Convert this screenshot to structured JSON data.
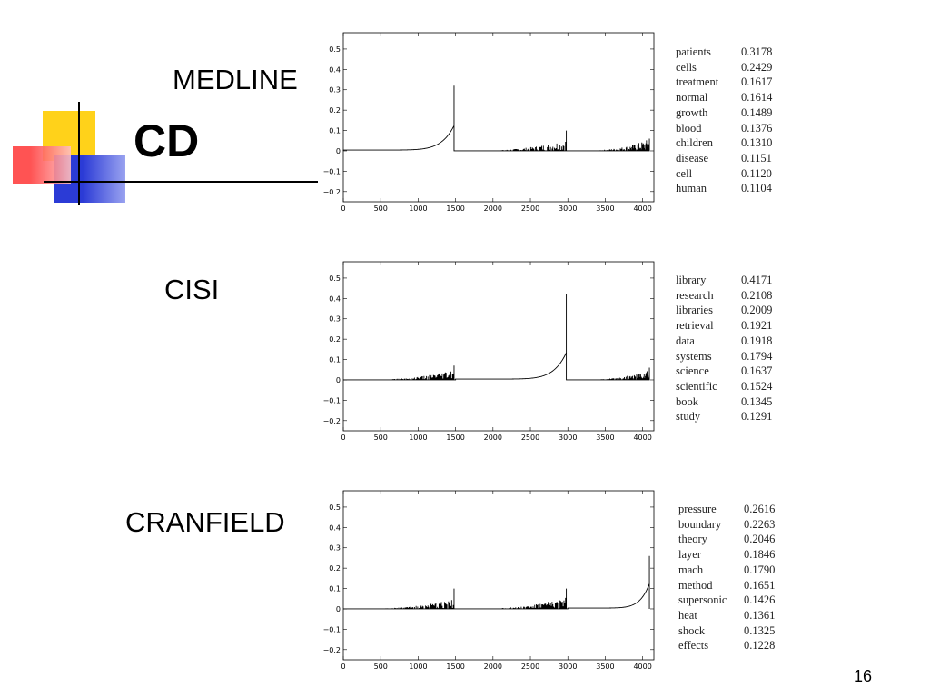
{
  "slide": {
    "title": "CD",
    "page_number": "16"
  },
  "colors": {
    "square_yellow": "#ffd21a",
    "square_blue": "#2b3bd6",
    "square_red": "#ff4040",
    "line": "#000000"
  },
  "chart_data": [
    {
      "type": "area",
      "name": "MEDLINE",
      "label": "MEDLINE",
      "xlim": [
        0,
        4150
      ],
      "ylim": [
        -0.25,
        0.58
      ],
      "x_ticks": [
        0,
        500,
        1000,
        1500,
        2000,
        2500,
        3000,
        3500,
        4000
      ],
      "y_ticks": [
        -0.2,
        -0.1,
        0,
        0.1,
        0.2,
        0.3,
        0.4,
        0.5
      ],
      "x_tick_labels": [
        "0",
        "500",
        "1000",
        "1500",
        "2000",
        "2500",
        "3000",
        "3500",
        "4000"
      ],
      "y_tick_labels": [
        "−0.2",
        "−0.1",
        "0",
        "0.1",
        "0.2",
        "0.3",
        "0.4",
        "0.5"
      ],
      "segments": [
        {
          "x_start": 0,
          "x_end": 1480,
          "shape": "smooth_rise",
          "base": 0.0,
          "peak": 0.12,
          "spike": 0.32
        },
        {
          "x_start": 1500,
          "x_end": 2980,
          "shape": "noise",
          "base": 0.0,
          "peak": 0.06,
          "spike": 0.1
        },
        {
          "x_start": 3000,
          "x_end": 4090,
          "shape": "noise",
          "base": 0.0,
          "peak": 0.06,
          "spike": 0.06
        }
      ],
      "terms": [
        {
          "word": "patients",
          "value": "0.3178"
        },
        {
          "word": "cells",
          "value": "0.2429"
        },
        {
          "word": "treatment",
          "value": "0.1617"
        },
        {
          "word": "normal",
          "value": "0.1614"
        },
        {
          "word": "growth",
          "value": "0.1489"
        },
        {
          "word": "blood",
          "value": "0.1376"
        },
        {
          "word": "children",
          "value": "0.1310"
        },
        {
          "word": "disease",
          "value": "0.1151"
        },
        {
          "word": "cell",
          "value": "0.1120"
        },
        {
          "word": "human",
          "value": "0.1104"
        }
      ]
    },
    {
      "type": "area",
      "name": "CISI",
      "label": "CISI",
      "xlim": [
        0,
        4150
      ],
      "ylim": [
        -0.25,
        0.58
      ],
      "x_ticks": [
        0,
        500,
        1000,
        1500,
        2000,
        2500,
        3000,
        3500,
        4000
      ],
      "y_ticks": [
        -0.2,
        -0.1,
        0,
        0.1,
        0.2,
        0.3,
        0.4,
        0.5
      ],
      "x_tick_labels": [
        "0",
        "500",
        "1000",
        "1500",
        "2000",
        "2500",
        "3000",
        "3500",
        "4000"
      ],
      "y_tick_labels": [
        "−0.2",
        "−0.1",
        "0",
        "0.1",
        "0.2",
        "0.3",
        "0.4",
        "0.5"
      ],
      "segments": [
        {
          "x_start": 0,
          "x_end": 1480,
          "shape": "noise",
          "base": 0.0,
          "peak": 0.05,
          "spike": 0.07
        },
        {
          "x_start": 1500,
          "x_end": 2980,
          "shape": "smooth_rise",
          "base": 0.0,
          "peak": 0.13,
          "spike": 0.42
        },
        {
          "x_start": 3000,
          "x_end": 4090,
          "shape": "noise",
          "base": 0.0,
          "peak": 0.05,
          "spike": 0.06
        }
      ],
      "terms": [
        {
          "word": "library",
          "value": "0.4171"
        },
        {
          "word": "research",
          "value": "0.2108"
        },
        {
          "word": "libraries",
          "value": "0.2009"
        },
        {
          "word": "retrieval",
          "value": "0.1921"
        },
        {
          "word": "data",
          "value": "0.1918"
        },
        {
          "word": "systems",
          "value": "0.1794"
        },
        {
          "word": "science",
          "value": "0.1637"
        },
        {
          "word": "scientific",
          "value": "0.1524"
        },
        {
          "word": "book",
          "value": "0.1345"
        },
        {
          "word": "study",
          "value": "0.1291"
        }
      ]
    },
    {
      "type": "area",
      "name": "CRANFIELD",
      "label": "CRANFIELD",
      "xlim": [
        0,
        4150
      ],
      "ylim": [
        -0.25,
        0.58
      ],
      "x_ticks": [
        0,
        500,
        1000,
        1500,
        2000,
        2500,
        3000,
        3500,
        4000
      ],
      "y_ticks": [
        -0.2,
        -0.1,
        0,
        0.1,
        0.2,
        0.3,
        0.4,
        0.5
      ],
      "x_tick_labels": [
        "0",
        "500",
        "1000",
        "1500",
        "2000",
        "2500",
        "3000",
        "3500",
        "4000"
      ],
      "y_tick_labels": [
        "−0.2",
        "−0.1",
        "0",
        "0.1",
        "0.2",
        "0.3",
        "0.4",
        "0.5"
      ],
      "segments": [
        {
          "x_start": 0,
          "x_end": 1480,
          "shape": "noise",
          "base": 0.0,
          "peak": 0.05,
          "spike": 0.1
        },
        {
          "x_start": 1500,
          "x_end": 2980,
          "shape": "noise",
          "base": 0.0,
          "peak": 0.06,
          "spike": 0.1
        },
        {
          "x_start": 3000,
          "x_end": 4090,
          "shape": "smooth_rise",
          "base": 0.0,
          "peak": 0.12,
          "spike": 0.26
        }
      ],
      "terms": [
        {
          "word": "pressure",
          "value": "0.2616"
        },
        {
          "word": "boundary",
          "value": "0.2263"
        },
        {
          "word": "theory",
          "value": "0.2046"
        },
        {
          "word": "layer",
          "value": "0.1846"
        },
        {
          "word": "mach",
          "value": "0.1790"
        },
        {
          "word": "method",
          "value": "0.1651"
        },
        {
          "word": "supersonic",
          "value": "0.1426"
        },
        {
          "word": "heat",
          "value": "0.1361"
        },
        {
          "word": "shock",
          "value": "0.1325"
        },
        {
          "word": "effects",
          "value": "0.1228"
        }
      ]
    }
  ]
}
